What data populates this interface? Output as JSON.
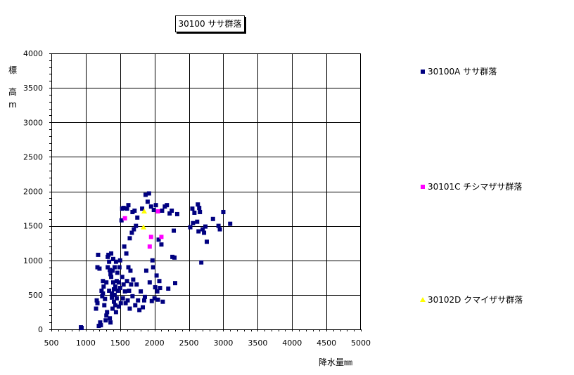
{
  "chart_data": {
    "type": "scatter",
    "title": "30100 ササ群落",
    "xlabel": "降水量㎜",
    "ylabel_chars": [
      "標",
      "高",
      "m"
    ],
    "xlim": [
      500,
      5000
    ],
    "ylim": [
      0,
      4000
    ],
    "x_ticks": [
      500,
      1000,
      1500,
      2000,
      2500,
      3000,
      3500,
      4000,
      4500,
      5000
    ],
    "y_ticks": [
      0,
      500,
      1000,
      1500,
      2000,
      2500,
      3000,
      3500,
      4000
    ],
    "grid": true,
    "legend_position": "right",
    "series": [
      {
        "name": "30100A ササ群落",
        "color": "#000080",
        "marker": "square",
        "points": [
          [
            930,
            30
          ],
          [
            940,
            20
          ],
          [
            1150,
            300
          ],
          [
            1160,
            420
          ],
          [
            1170,
            380
          ],
          [
            1180,
            1080
          ],
          [
            1170,
            900
          ],
          [
            1200,
            880
          ],
          [
            1190,
            50
          ],
          [
            1210,
            100
          ],
          [
            1220,
            60
          ],
          [
            1230,
            560
          ],
          [
            1240,
            480
          ],
          [
            1250,
            520
          ],
          [
            1250,
            700
          ],
          [
            1260,
            620
          ],
          [
            1270,
            350
          ],
          [
            1280,
            440
          ],
          [
            1290,
            130
          ],
          [
            1300,
            680
          ],
          [
            1300,
            200
          ],
          [
            1310,
            250
          ],
          [
            1320,
            1050
          ],
          [
            1320,
            900
          ],
          [
            1330,
            1080
          ],
          [
            1340,
            980
          ],
          [
            1340,
            560
          ],
          [
            1350,
            860
          ],
          [
            1350,
            160
          ],
          [
            1360,
            800
          ],
          [
            1360,
            100
          ],
          [
            1370,
            1100
          ],
          [
            1370,
            760
          ],
          [
            1380,
            520
          ],
          [
            1380,
            460
          ],
          [
            1390,
            850
          ],
          [
            1390,
            300
          ],
          [
            1400,
            1020
          ],
          [
            1400,
            680
          ],
          [
            1410,
            580
          ],
          [
            1410,
            400
          ],
          [
            1420,
            900
          ],
          [
            1420,
            500
          ],
          [
            1430,
            620
          ],
          [
            1430,
            350
          ],
          [
            1440,
            980
          ],
          [
            1440,
            250
          ],
          [
            1450,
            700
          ],
          [
            1450,
            450
          ],
          [
            1460,
            820
          ],
          [
            1470,
            560
          ],
          [
            1480,
            680
          ],
          [
            1480,
            330
          ],
          [
            1490,
            900
          ],
          [
            1500,
            1000
          ],
          [
            1500,
            600
          ],
          [
            1510,
            380
          ],
          [
            1520,
            1580
          ],
          [
            1530,
            1750
          ],
          [
            1530,
            760
          ],
          [
            1540,
            450
          ],
          [
            1550,
            1760
          ],
          [
            1550,
            650
          ],
          [
            1560,
            1200
          ],
          [
            1570,
            550
          ],
          [
            1580,
            380
          ],
          [
            1590,
            1100
          ],
          [
            1600,
            1750
          ],
          [
            1600,
            700
          ],
          [
            1610,
            420
          ],
          [
            1620,
            1800
          ],
          [
            1620,
            900
          ],
          [
            1630,
            560
          ],
          [
            1640,
            1320
          ],
          [
            1640,
            300
          ],
          [
            1650,
            850
          ],
          [
            1660,
            650
          ],
          [
            1670,
            1400
          ],
          [
            1680,
            1700
          ],
          [
            1680,
            480
          ],
          [
            1690,
            720
          ],
          [
            1700,
            1450
          ],
          [
            1710,
            1720
          ],
          [
            1720,
            350
          ],
          [
            1730,
            1500
          ],
          [
            1740,
            650
          ],
          [
            1750,
            1620
          ],
          [
            1760,
            420
          ],
          [
            1780,
            280
          ],
          [
            1800,
            550
          ],
          [
            1820,
            1750
          ],
          [
            1830,
            320
          ],
          [
            1850,
            420
          ],
          [
            1860,
            470
          ],
          [
            1870,
            1950
          ],
          [
            1880,
            850
          ],
          [
            1900,
            1850
          ],
          [
            1920,
            1970
          ],
          [
            1930,
            680
          ],
          [
            1950,
            1780
          ],
          [
            1960,
            410
          ],
          [
            1970,
            1000
          ],
          [
            1980,
            900
          ],
          [
            1990,
            1730
          ],
          [
            2000,
            450
          ],
          [
            2010,
            610
          ],
          [
            2020,
            1800
          ],
          [
            2030,
            780
          ],
          [
            2040,
            550
          ],
          [
            2050,
            430
          ],
          [
            2060,
            1300
          ],
          [
            2070,
            700
          ],
          [
            2080,
            600
          ],
          [
            2100,
            1230
          ],
          [
            2110,
            1720
          ],
          [
            2120,
            400
          ],
          [
            2150,
            1780
          ],
          [
            2180,
            1800
          ],
          [
            2200,
            590
          ],
          [
            2220,
            1680
          ],
          [
            2250,
            1720
          ],
          [
            2260,
            1050
          ],
          [
            2280,
            1430
          ],
          [
            2290,
            1040
          ],
          [
            2300,
            670
          ],
          [
            2330,
            1670
          ],
          [
            2520,
            1480
          ],
          [
            2550,
            1750
          ],
          [
            2560,
            1540
          ],
          [
            2580,
            1690
          ],
          [
            2620,
            1560
          ],
          [
            2630,
            1810
          ],
          [
            2640,
            1420
          ],
          [
            2650,
            1760
          ],
          [
            2660,
            1700
          ],
          [
            2680,
            970
          ],
          [
            2700,
            1450
          ],
          [
            2720,
            1400
          ],
          [
            2740,
            1490
          ],
          [
            2760,
            1270
          ],
          [
            2850,
            1600
          ],
          [
            2930,
            1500
          ],
          [
            2950,
            1450
          ],
          [
            3000,
            1700
          ],
          [
            3100,
            1530
          ]
        ]
      },
      {
        "name": "30101C チシマザサ群落",
        "color": "#ff00ff",
        "marker": "square",
        "points": [
          [
            1570,
            1610
          ],
          [
            1930,
            1200
          ],
          [
            1950,
            1340
          ],
          [
            2050,
            1710
          ],
          [
            2100,
            1340
          ]
        ]
      },
      {
        "name": "30102D クマイザサ群落",
        "color": "#ffff00",
        "marker": "triangle",
        "points": [
          [
            1850,
            1710
          ],
          [
            1840,
            1480
          ]
        ]
      }
    ]
  }
}
